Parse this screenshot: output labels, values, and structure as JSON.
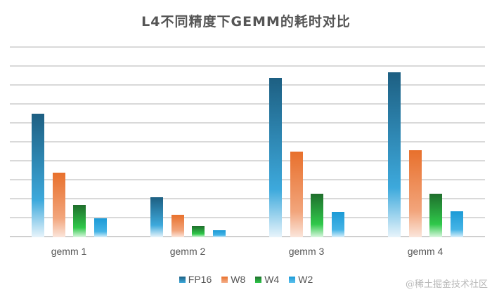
{
  "chart_data": {
    "type": "bar",
    "title": "L4不同精度下GEMM的耗时对比",
    "xlabel": "",
    "ylabel": "",
    "categories": [
      "gemm1",
      "gemm2",
      "gemm3",
      "gemm4"
    ],
    "series": [
      {
        "name": "FP16",
        "values": [
          6.5,
          2.1,
          8.4,
          8.7
        ],
        "color_top": "#1d5f82",
        "color_mid": "#3da9dc",
        "color_bottom": "#e8f4fb"
      },
      {
        "name": "W8",
        "values": [
          3.4,
          1.2,
          4.5,
          4.6
        ],
        "color_top": "#e8702c",
        "color_mid": "#f2a57c",
        "color_bottom": "#fbe6dc"
      },
      {
        "name": "W4",
        "values": [
          1.7,
          0.6,
          2.3,
          2.3
        ],
        "color_top": "#1f6e2c",
        "color_mid": "#2fc84a",
        "color_bottom": "#d9f7df"
      },
      {
        "name": "W2",
        "values": [
          1.0,
          0.37,
          1.33,
          1.37
        ],
        "color_top": "#1c9ad6",
        "color_mid": "#45b4e6",
        "color_bottom": "#d8effa"
      }
    ],
    "ylim": [
      0,
      10
    ],
    "y_ticks_visible": false,
    "grid": true,
    "gridline_count": 10,
    "legend_position": "bottom"
  },
  "legend": [
    {
      "label": "FP16"
    },
    {
      "label": "W8"
    },
    {
      "label": "W4"
    },
    {
      "label": "W2"
    }
  ],
  "watermark": "@稀土掘金技术社区"
}
